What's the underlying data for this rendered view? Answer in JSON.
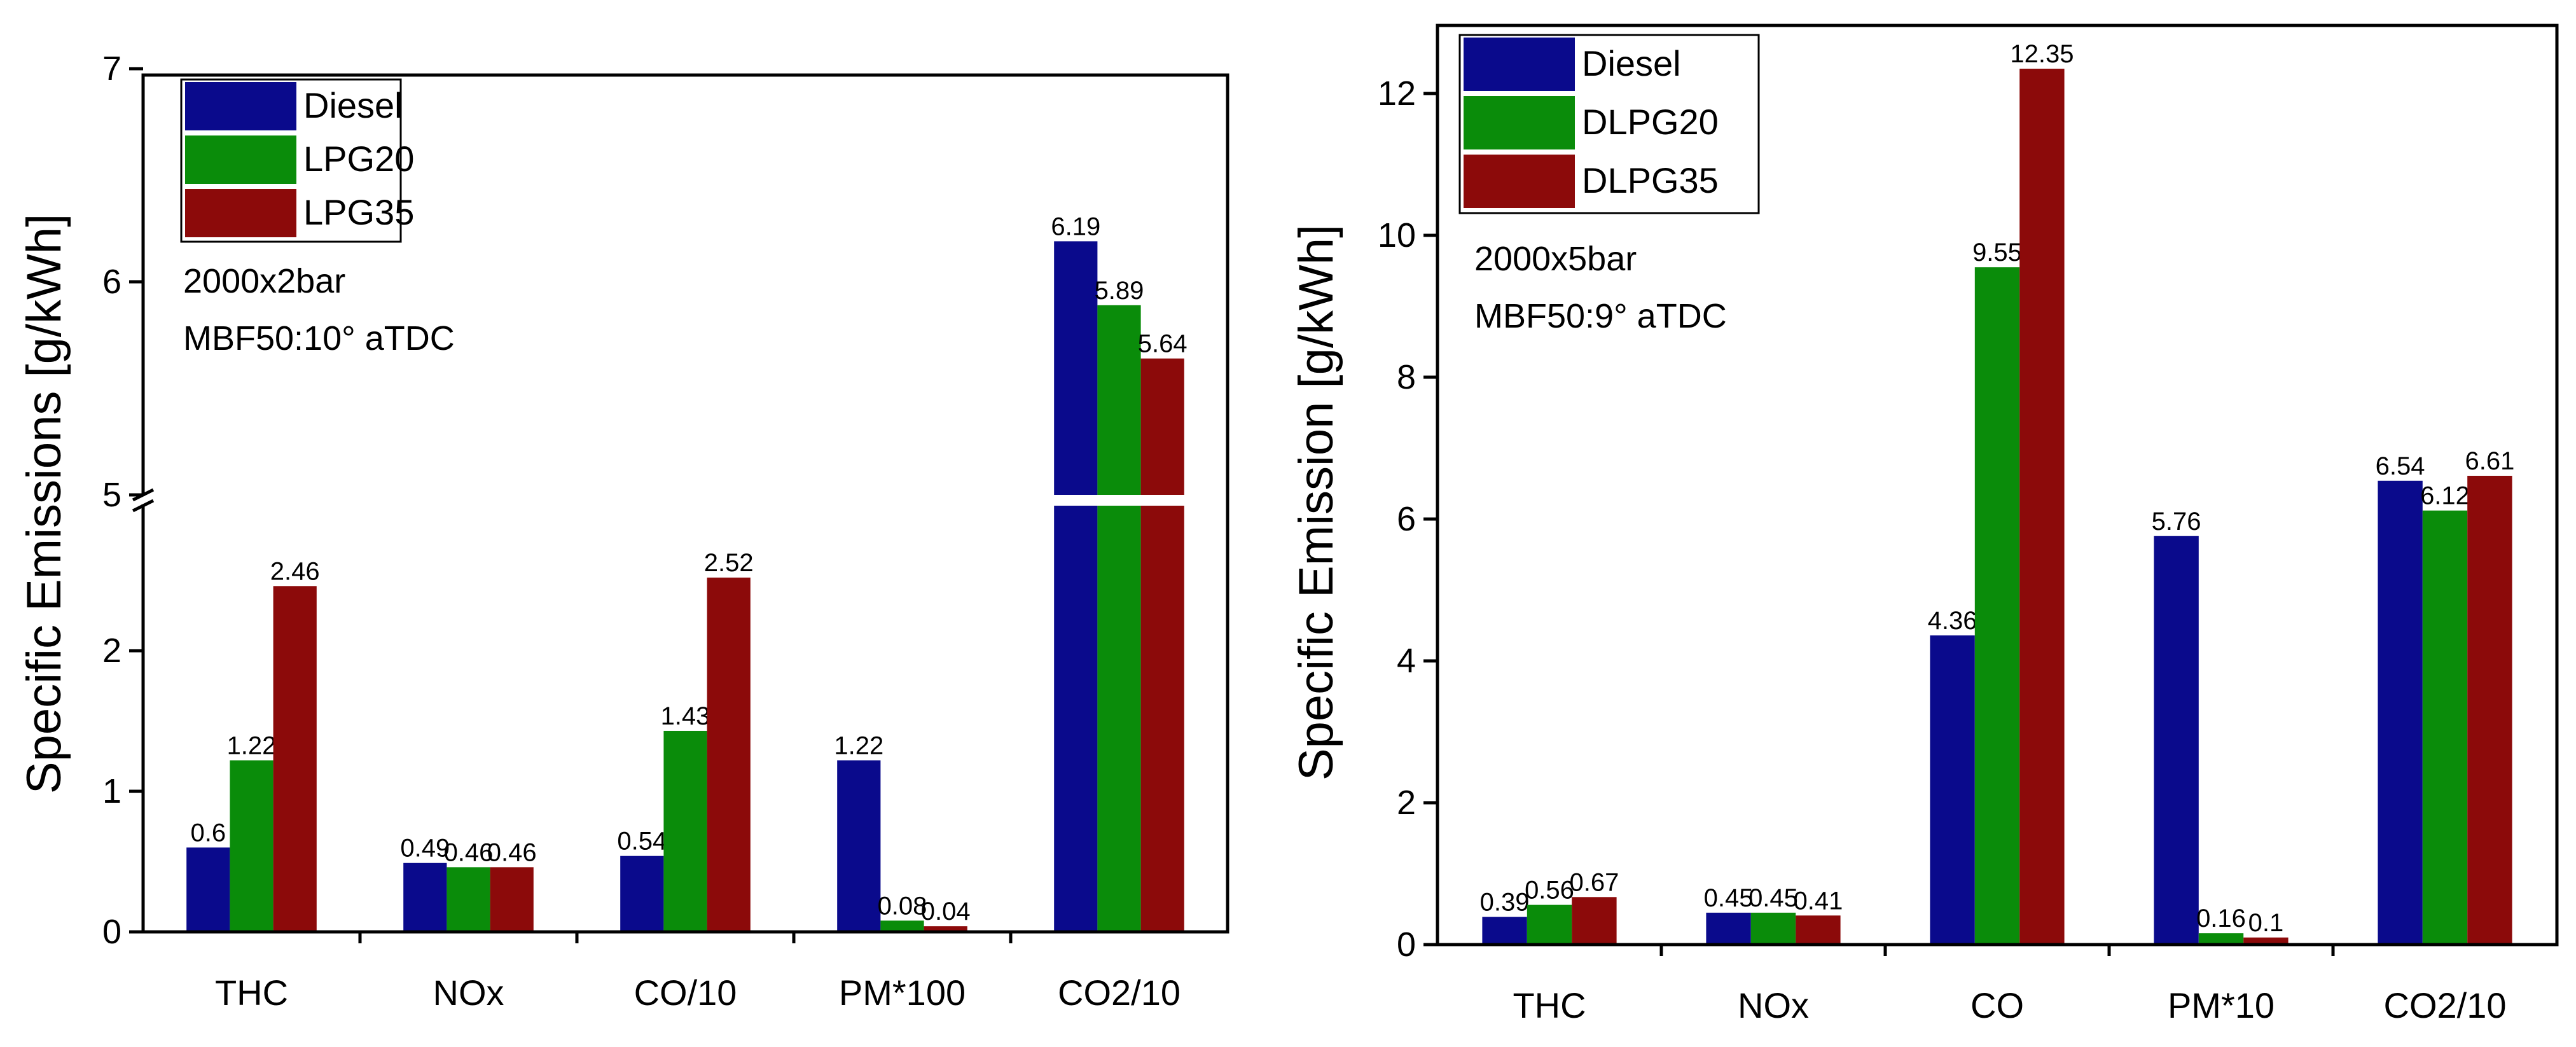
{
  "chart_data": [
    {
      "type": "bar",
      "ylabel": "Specific Emissions [g/kWh]",
      "categories": [
        "THC",
        "NOx",
        "CO/10",
        "PM*100",
        "CO2/10"
      ],
      "series": [
        {
          "name": "Diesel",
          "color": "#0a0a8c",
          "values": [
            0.6,
            0.49,
            0.54,
            1.22,
            6.19
          ]
        },
        {
          "name": "LPG20",
          "color": "#0a8c0a",
          "values": [
            1.22,
            0.46,
            1.43,
            0.08,
            5.89
          ]
        },
        {
          "name": "LPG35",
          "color": "#8c0a0a",
          "values": [
            2.46,
            0.46,
            2.52,
            0.04,
            5.64
          ]
        }
      ],
      "value_labels": [
        [
          "0.6",
          "0.49",
          "0.54",
          "1.22",
          "6.19"
        ],
        [
          "1.22",
          "0.46",
          "1.43",
          "0.08",
          "5.89"
        ],
        [
          "2.46",
          "0.46",
          "2.52",
          "0.04",
          "5.64"
        ]
      ],
      "ylim": [
        0,
        7
      ],
      "axis_break": [
        3,
        5
      ],
      "yticks": [
        "0",
        "1",
        "2",
        "5",
        "6",
        "7"
      ],
      "annotations": [
        "2000x2bar",
        "MBF50:10° aTDC"
      ],
      "legend": "top-left"
    },
    {
      "type": "bar",
      "ylabel": "Specific Emission [g/kWh]",
      "categories": [
        "THC",
        "NOx",
        "CO",
        "PM*10",
        "CO2/10"
      ],
      "series": [
        {
          "name": "Diesel",
          "color": "#0a0a8c",
          "values": [
            0.39,
            0.45,
            4.36,
            5.76,
            6.54
          ]
        },
        {
          "name": "DLPG20",
          "color": "#0a8c0a",
          "values": [
            0.56,
            0.45,
            9.55,
            0.16,
            6.12
          ]
        },
        {
          "name": "DLPG35",
          "color": "#8c0a0a",
          "values": [
            0.67,
            0.41,
            12.35,
            0.1,
            6.61
          ]
        }
      ],
      "value_labels": [
        [
          "0.39",
          "0.45",
          "4.36",
          "5.76",
          "6.54"
        ],
        [
          "0.56",
          "0.45",
          "9.55",
          "0.16",
          "6.12"
        ],
        [
          "0.67",
          "0.41",
          "12.35",
          "0.1",
          "6.61"
        ]
      ],
      "ylim": [
        0,
        13
      ],
      "yticks": [
        "0",
        "2",
        "4",
        "6",
        "8",
        "10",
        "12"
      ],
      "annotations": [
        "2000x5bar",
        "MBF50:9° aTDC"
      ],
      "legend": "top-left"
    }
  ]
}
